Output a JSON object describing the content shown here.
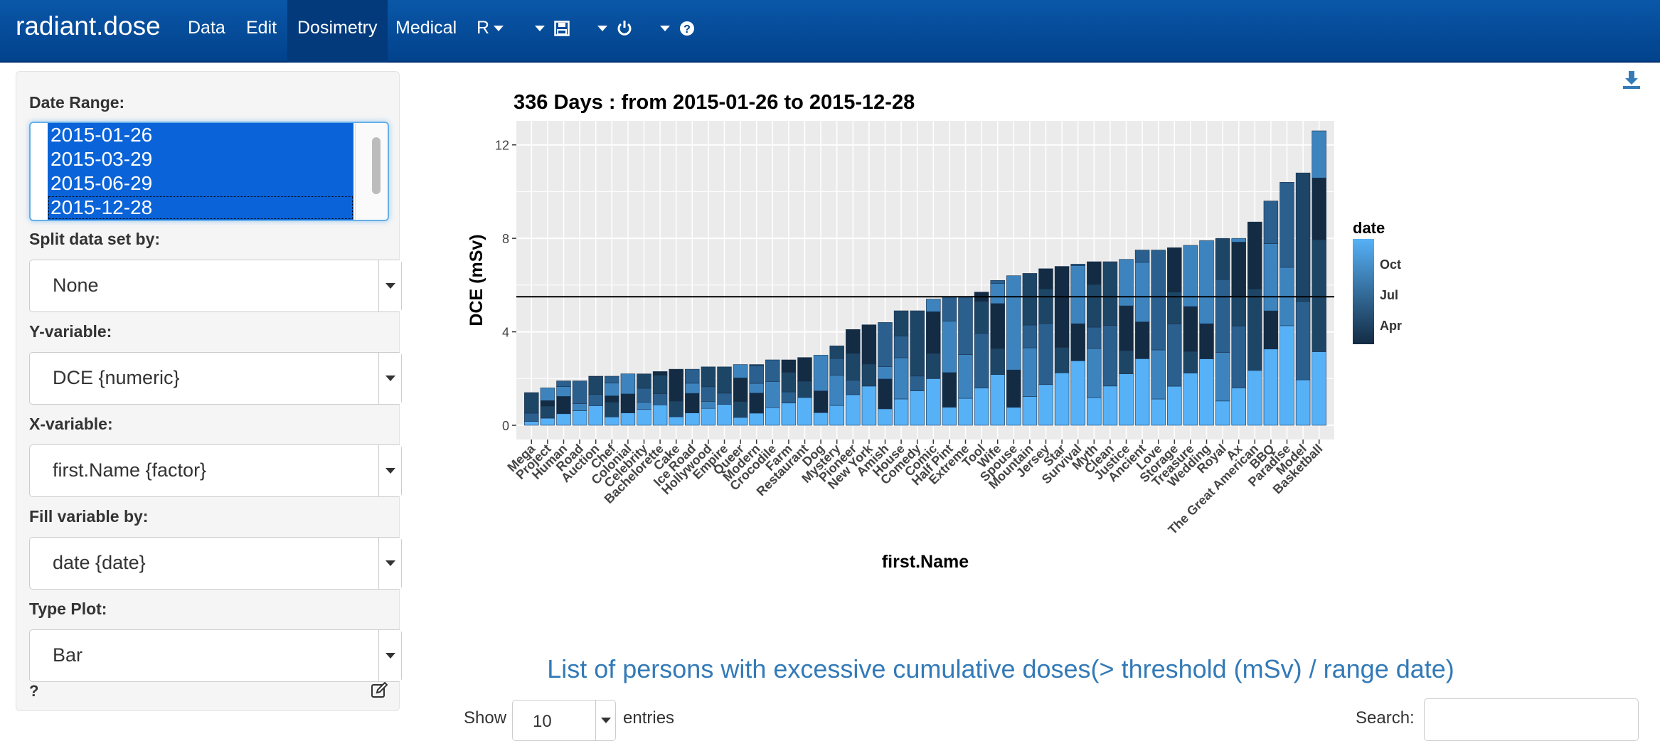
{
  "navbar": {
    "brand": "radiant.dose",
    "items": [
      {
        "label": "Data"
      },
      {
        "label": "Edit"
      },
      {
        "label": "Dosimetry",
        "active": true
      },
      {
        "label": "Medical"
      },
      {
        "label": "R"
      }
    ],
    "icons": [
      "save-icon",
      "power-icon",
      "help-icon"
    ]
  },
  "sidebar": {
    "date_range_label": "Date Range:",
    "date_options": [
      "2015-01-26",
      "2015-03-29",
      "2015-06-29",
      "2015-12-28"
    ],
    "split_label": "Split data set by:",
    "split_value": "None",
    "y_label": "Y-variable:",
    "y_value": "DCE {numeric}",
    "x_label": "X-variable:",
    "x_value": "first.Name {factor}",
    "fill_label": "Fill variable by:",
    "fill_value": "date {date}",
    "type_label": "Type Plot:",
    "type_value": "Bar",
    "help": "?"
  },
  "chart_data": {
    "type": "bar",
    "stacked": true,
    "title": "336 Days : from 2015-01-26 to 2015-12-28",
    "xlabel": "first.Name",
    "ylabel": "DCE (mSv)",
    "ylim": [
      0,
      12.6
    ],
    "yticks": [
      0,
      4,
      8,
      12
    ],
    "threshold": 5.5,
    "grid": true,
    "legend": {
      "title": "date",
      "labels": [
        "Oct",
        "Jul",
        "Apr"
      ],
      "position": "right"
    },
    "colors": {
      "light": "#56b1f7",
      "dark": "#132b43",
      "panel": "#ebebeb"
    },
    "categories": [
      "Mega",
      "Project",
      "Human",
      "Road",
      "Auction",
      "Chef",
      "Colonial",
      "Celebrity",
      "Bachelorette",
      "Cake",
      "Ice Road",
      "Hollywood",
      "Empire",
      "Queer",
      "Modern",
      "Crocodile",
      "Farm",
      "Restaurant",
      "Dog",
      "Mystery",
      "Pioneer",
      "New York",
      "Amish",
      "House",
      "Comedy",
      "Comic",
      "Half Pint",
      "Extreme",
      "Tool",
      "Wife",
      "Spouse",
      "Mountain",
      "Jersey",
      "Star",
      "Survival",
      "Myth",
      "Clean",
      "Justice",
      "Ancient",
      "Love",
      "Storage",
      "Treasure",
      "Wedding",
      "Royal",
      "Ax",
      "The Great American",
      "BBQ",
      "Paradise",
      "Model",
      "Basketball"
    ],
    "values": [
      1.4,
      1.6,
      1.9,
      1.9,
      2.1,
      2.1,
      2.2,
      2.2,
      2.3,
      2.4,
      2.4,
      2.5,
      2.5,
      2.6,
      2.6,
      2.8,
      2.8,
      2.9,
      3.0,
      3.4,
      4.1,
      4.3,
      4.4,
      4.9,
      4.9,
      5.4,
      5.5,
      5.5,
      5.7,
      6.2,
      6.4,
      6.5,
      6.7,
      6.8,
      6.9,
      7.0,
      7.0,
      7.1,
      7.5,
      7.5,
      7.6,
      7.7,
      7.9,
      8.0,
      8.0,
      8.7,
      9.6,
      10.4,
      10.8,
      12.6
    ]
  },
  "table": {
    "title": "List of persons with excessive cumulative doses(> threshold (mSv) / range date)",
    "show_label": "Show",
    "length_value": "10",
    "entries_label": "entries",
    "search_label": "Search:",
    "search_value": ""
  }
}
